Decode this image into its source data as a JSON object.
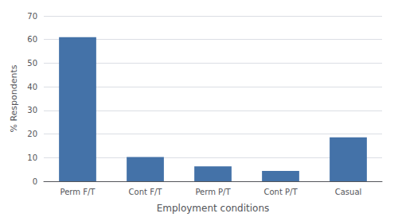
{
  "chart_data": {
    "type": "bar",
    "categories": [
      "Perm F/T",
      "Cont F/T",
      "Perm P/T",
      "Cont P/T",
      "Casual"
    ],
    "values": [
      61.0,
      10.3,
      6.3,
      4.4,
      18.6
    ],
    "color": "#4472a8",
    "xlabel": "Employment conditions",
    "ylabel": "% Respondents",
    "ylim": [
      0,
      70
    ],
    "yticks": [
      0,
      10,
      20,
      30,
      40,
      50,
      60,
      70
    ],
    "grid": true
  }
}
